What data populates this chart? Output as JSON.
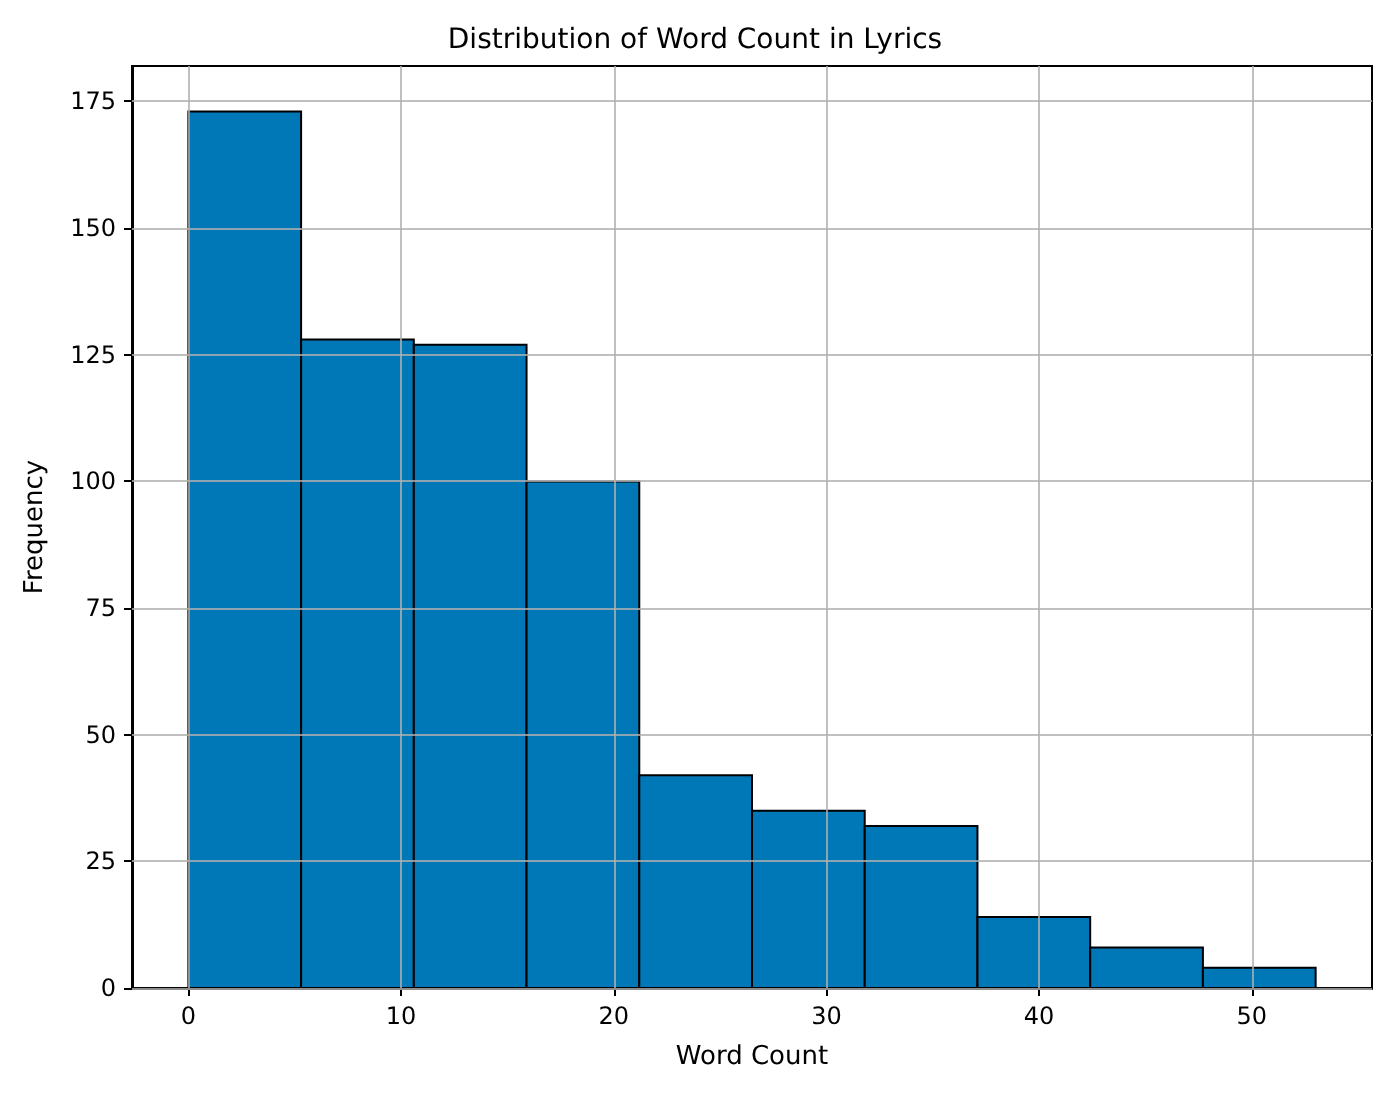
{
  "chart_data": {
    "type": "histogram",
    "title": "Distribution of Word Count in Lyrics",
    "xlabel": "Word Count",
    "ylabel": "Frequency",
    "bins": [
      0,
      5.3,
      10.6,
      15.9,
      21.2,
      26.5,
      31.8,
      37.1,
      42.4,
      47.7,
      53
    ],
    "values": [
      173,
      128,
      127,
      100,
      42,
      35,
      32,
      14,
      8,
      4
    ],
    "color": "#0077b6",
    "xlim": [
      -2.65,
      55.65
    ],
    "xticks": [
      0,
      10,
      20,
      30,
      40,
      50
    ],
    "ylim": [
      0,
      182
    ],
    "yticks": [
      0,
      25,
      50,
      75,
      100,
      125,
      150,
      175
    ],
    "grid": true
  }
}
